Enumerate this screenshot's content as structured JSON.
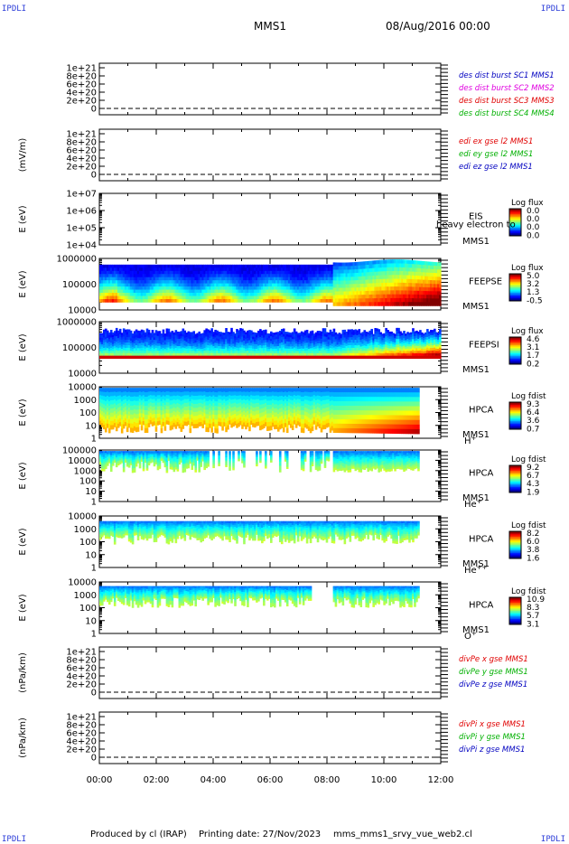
{
  "corners": {
    "tl": "IPDLI",
    "tr": "IPDLI",
    "bl": "IPDLI",
    "br": "IPDLI"
  },
  "header": {
    "spacecraft": "MMS1",
    "datetime": "08/Aug/2016 00:00"
  },
  "footer": {
    "produced_by": "Produced by cl (IRAP)",
    "printing_date": "Printing date: 27/Nov/2023",
    "script": "mms_mms1_srvy_vue_web2.cl"
  },
  "colors": {
    "red": "#e00000",
    "green": "#00b000",
    "blue": "#0000c0",
    "magenta": "#e000e0"
  },
  "chart_data": {
    "type": "heatmap",
    "x_ticks": [
      "00:00",
      "02:00",
      "04:00",
      "06:00",
      "08:00",
      "10:00",
      "12:00"
    ],
    "xlim_hours": [
      0,
      12
    ],
    "panels": [
      {
        "kind": "line",
        "ylabel": "",
        "ticks": [
          "1e+21",
          "8e+20",
          "6e+20",
          "4e+20",
          "2e+20",
          "0"
        ],
        "legend": [
          {
            "text": "des dist burst SC1 MMS1",
            "color": "#0000c0"
          },
          {
            "text": "des dist burst SC2 MMS2",
            "color": "#e000e0"
          },
          {
            "text": "des dist burst SC3 MMS3",
            "color": "#e00000"
          },
          {
            "text": "des dist burst SC4 MMS4",
            "color": "#00b000"
          }
        ]
      },
      {
        "kind": "line",
        "ylabel": "(mV/m)",
        "ticks": [
          "1e+21",
          "8e+20",
          "6e+20",
          "4e+20",
          "2e+20",
          "0"
        ],
        "legend": [
          {
            "text": "edi ex gse l2 MMS1",
            "color": "#e00000"
          },
          {
            "text": "edi ey gse l2 MMS1",
            "color": "#00b000"
          },
          {
            "text": "edi ez gse l2 MMS1",
            "color": "#0000c0"
          }
        ]
      },
      {
        "kind": "spec",
        "ylabel": "E (eV)",
        "ticks": [
          "1e+07",
          "1e+06",
          "1e+05",
          "1e+04"
        ],
        "instrument": "EIS",
        "extra": "heavy electron to",
        "sc": "MMS1",
        "cbar_title": "Log flux",
        "cbar_vals": [
          "0.0",
          "0.0",
          "0.0",
          "0.0"
        ],
        "pattern": "empty"
      },
      {
        "kind": "spec",
        "ylabel": "E (eV)",
        "ticks": [
          "1000000",
          "100000",
          "10000"
        ],
        "instrument": "FEEPSE",
        "sc": "MMS1",
        "cbar_title": "Log flux",
        "cbar_vals": [
          "5.0",
          "3.2",
          "1.3",
          "-0.5"
        ],
        "pattern": "feepse"
      },
      {
        "kind": "spec",
        "ylabel": "E (eV)",
        "ticks": [
          "1000000",
          "100000",
          "10000"
        ],
        "instrument": "FEEPSI",
        "sc": "MMS1",
        "cbar_title": "Log flux",
        "cbar_vals": [
          "4.6",
          "3.1",
          "1.7",
          "0.2"
        ],
        "pattern": "feepsi"
      },
      {
        "kind": "spec",
        "ylabel": "E (eV)",
        "ticks": [
          "10000",
          "1000",
          "100",
          "10",
          "1"
        ],
        "instrument": "HPCA",
        "sc": "MMS1",
        "species": "H",
        "species_sup": "+",
        "cbar_title": "Log fdist",
        "cbar_vals": [
          "9.3",
          "6.4",
          "3.6",
          "0.7"
        ],
        "pattern": "hpca_h"
      },
      {
        "kind": "spec",
        "ylabel": "E (eV)",
        "ticks": [
          "100000",
          "10000",
          "1000",
          "100",
          "10",
          "1"
        ],
        "instrument": "HPCA",
        "sc": "MMS1",
        "species": "He",
        "species_sup": "+",
        "cbar_title": "Log fdist",
        "cbar_vals": [
          "9.2",
          "6.7",
          "4.3",
          "1.9"
        ],
        "pattern": "hpca_he1"
      },
      {
        "kind": "spec",
        "ylabel": "E (eV)",
        "ticks": [
          "10000",
          "1000",
          "100",
          "10",
          "1"
        ],
        "instrument": "HPCA",
        "sc": "MMS1",
        "species": "He",
        "species_sup": "++",
        "cbar_title": "Log fdist",
        "cbar_vals": [
          "8.2",
          "6.0",
          "3.8",
          "1.6"
        ],
        "pattern": "hpca_he2"
      },
      {
        "kind": "spec",
        "ylabel": "E (eV)",
        "ticks": [
          "10000",
          "1000",
          "100",
          "10",
          "1"
        ],
        "instrument": "HPCA",
        "sc": "MMS1",
        "species": "O",
        "species_sup": "+",
        "cbar_title": "Log fdist",
        "cbar_vals": [
          "10.9",
          "8.3",
          "5.7",
          "3.1"
        ],
        "pattern": "hpca_o"
      },
      {
        "kind": "line",
        "ylabel": "(nPa/km)",
        "ticks": [
          "1e+21",
          "8e+20",
          "6e+20",
          "4e+20",
          "2e+20",
          "0"
        ],
        "legend": [
          {
            "text": "divPe x gse MMS1",
            "color": "#e00000"
          },
          {
            "text": "divPe y gse MMS1",
            "color": "#00b000"
          },
          {
            "text": "divPe z gse MMS1",
            "color": "#0000c0"
          }
        ]
      },
      {
        "kind": "line",
        "ylabel": "(nPa/km)",
        "ticks": [
          "1e+21",
          "8e+20",
          "6e+20",
          "4e+20",
          "2e+20",
          "0"
        ],
        "legend": [
          {
            "text": "divPi x gse MMS1",
            "color": "#e00000"
          },
          {
            "text": "divPi y gse MMS1",
            "color": "#00b000"
          },
          {
            "text": "divPi z gse MMS1",
            "color": "#0000c0"
          }
        ]
      }
    ]
  }
}
